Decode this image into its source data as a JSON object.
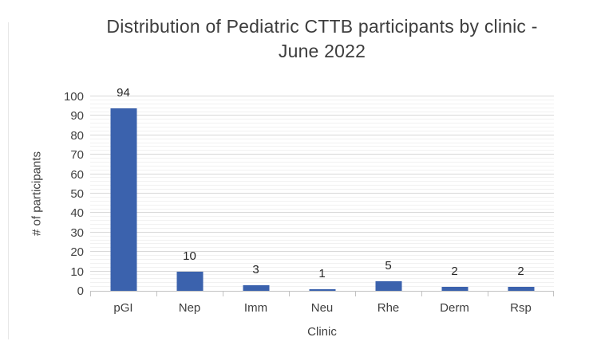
{
  "chart_data": {
    "type": "bar",
    "title": "Distribution of Pediatric CTTB participants by clinic - June 2022",
    "categories": [
      "pGI",
      "Nep",
      "Imm",
      "Neu",
      "Rhe",
      "Derm",
      "Rsp"
    ],
    "values": [
      94,
      10,
      3,
      1,
      5,
      2,
      2
    ],
    "xlabel": "Clinic",
    "ylabel": "# of participants",
    "ylim": [
      0,
      100
    ],
    "y_major_step": 10,
    "y_minor_step": 2,
    "y_tick_labels": [
      "0",
      "10",
      "20",
      "30",
      "40",
      "50",
      "60",
      "70",
      "80",
      "90",
      "100"
    ],
    "legend_position": "none",
    "grid": "horizontal major and minor gridlines on",
    "colors": {
      "bar_fill": "#3b62ad",
      "grid_major": "#d8d8d8",
      "grid_minor": "#f1f1f1",
      "axis_line": "#c2c2c2",
      "title_text": "#3d3d3d",
      "label_text": "#404040",
      "data_label_text": "#262626",
      "background": "#ffffff"
    }
  }
}
